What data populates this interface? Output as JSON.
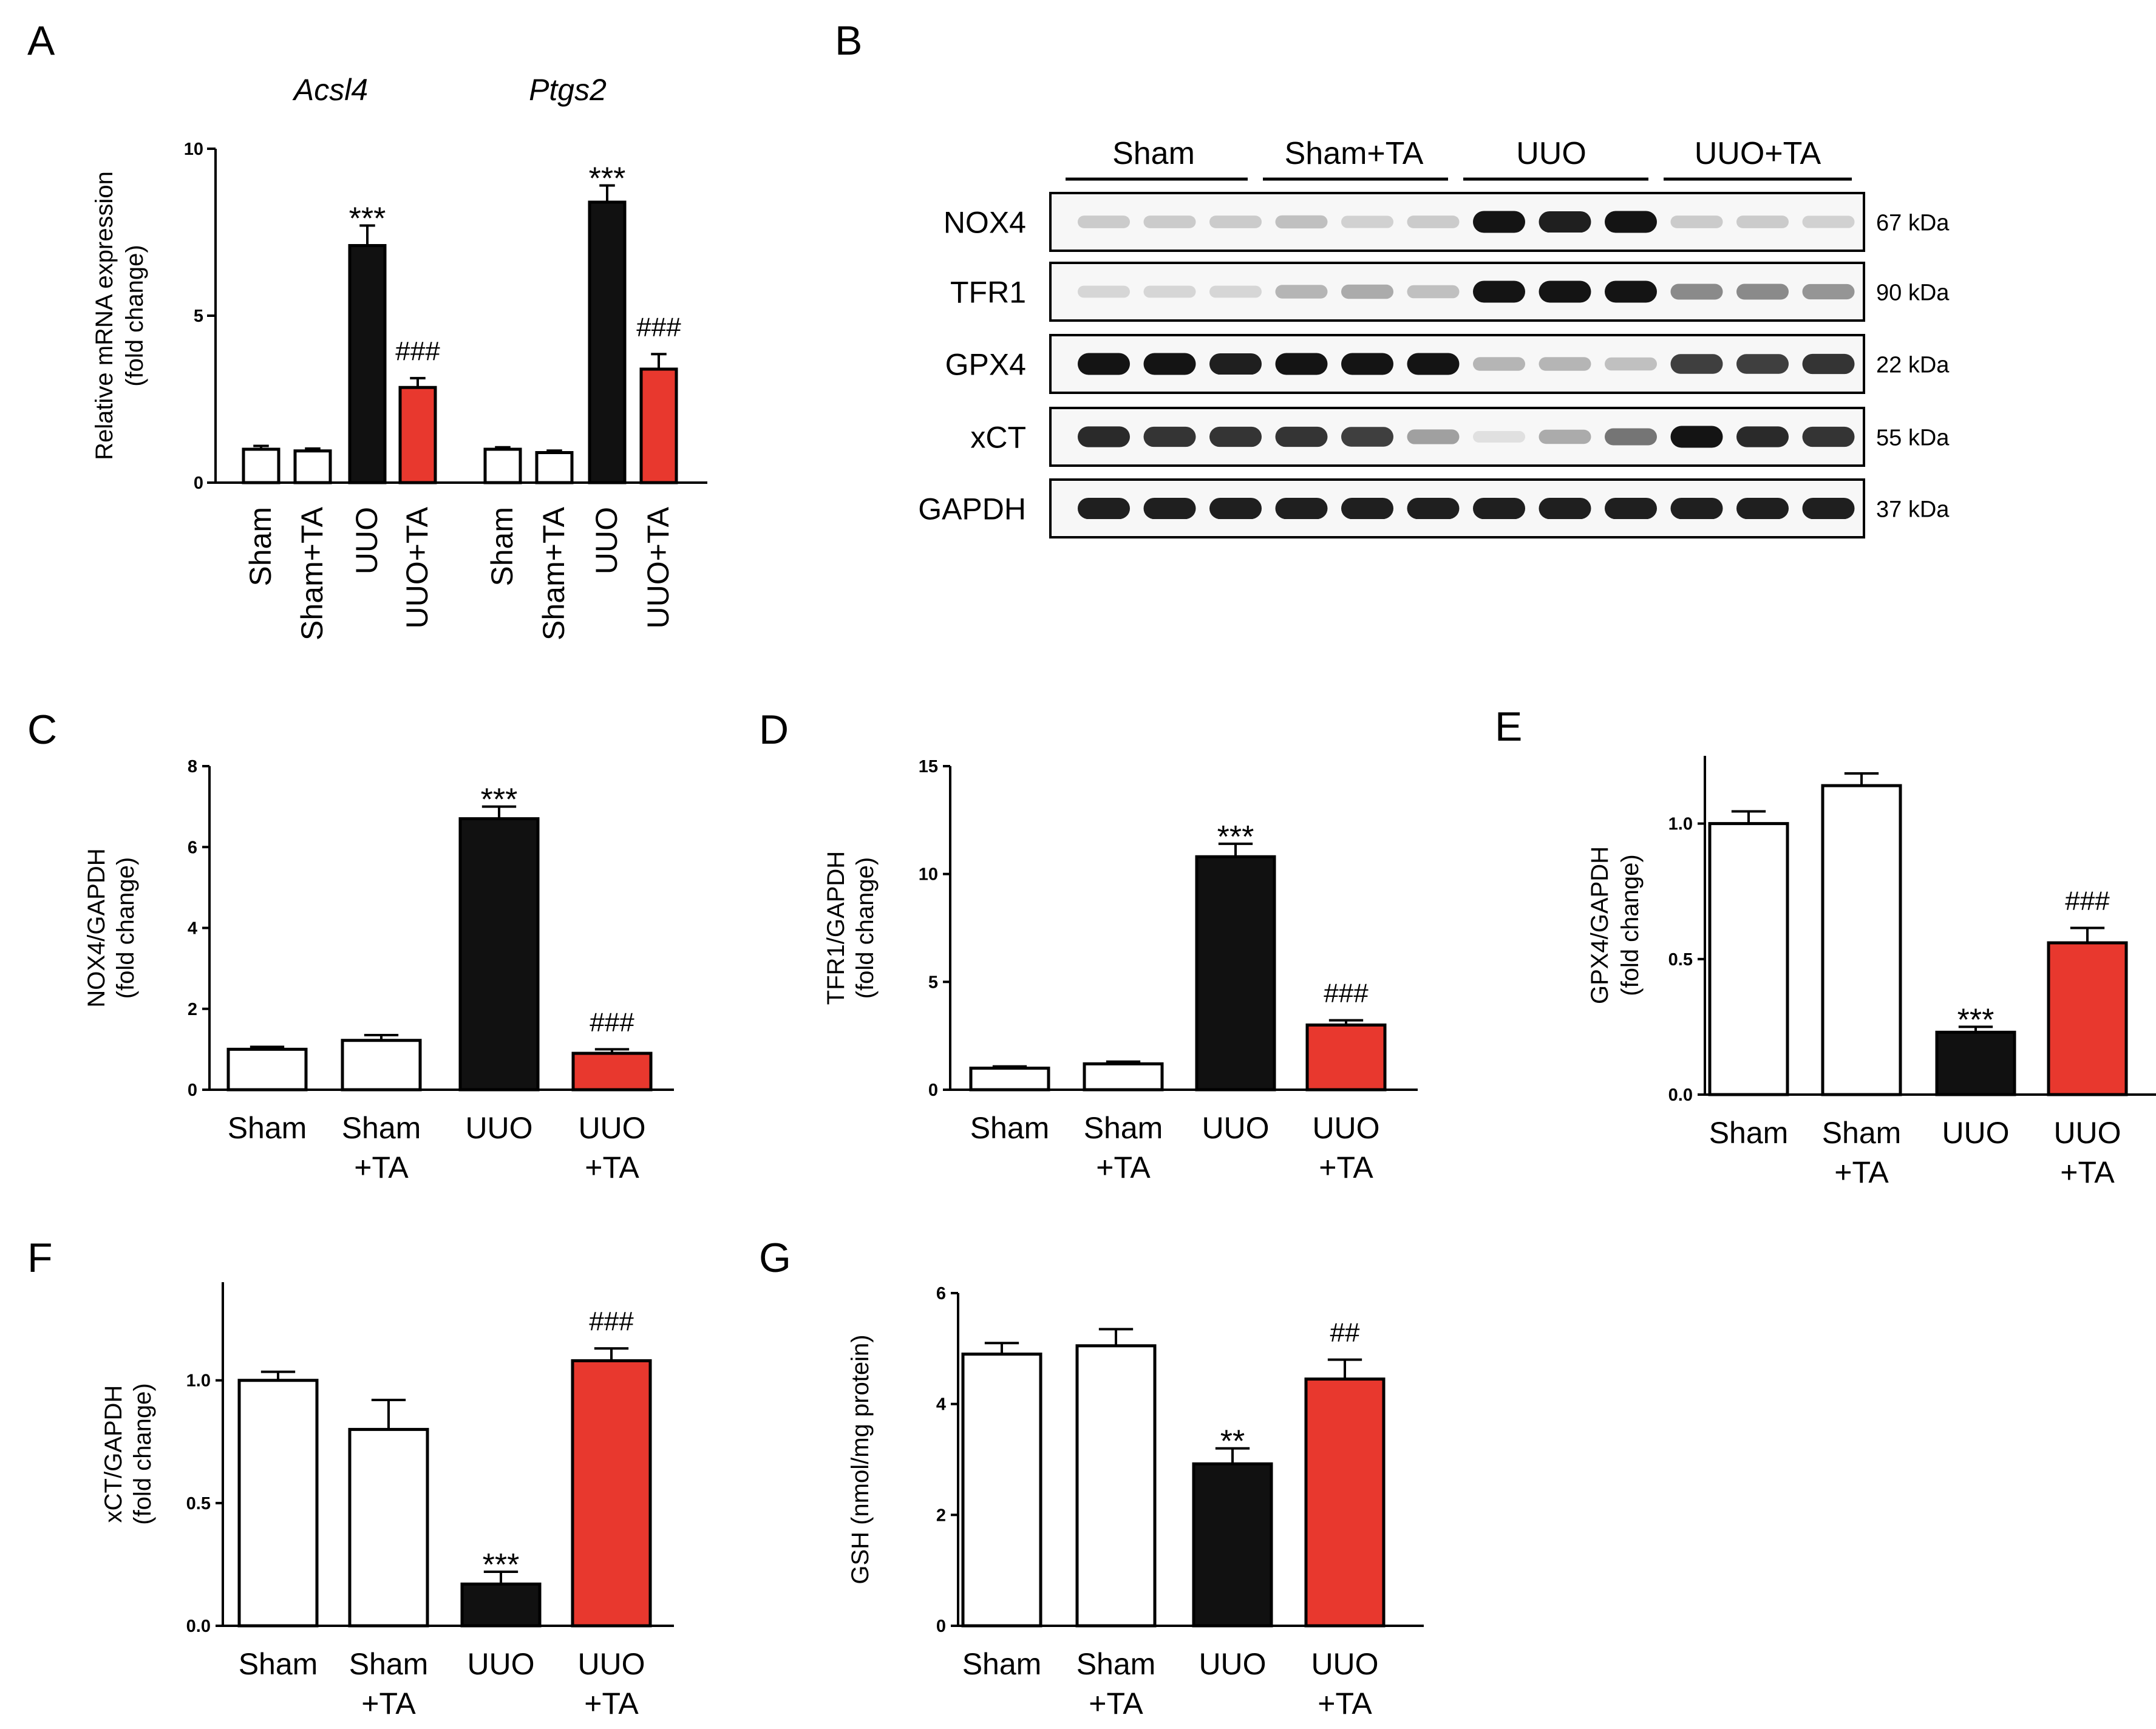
{
  "colors": {
    "Sham": "#ffffff",
    "Sham+TA": "#ffffff",
    "UUO": "#111111",
    "UUO+TA": "#e8382e",
    "outline": "#000000"
  },
  "chart_data": [
    {
      "id": "A",
      "panel_letter": "A",
      "type": "bar",
      "title": "",
      "ylabel": [
        "Relative mRNA expression",
        "(fold change)"
      ],
      "ylim": [
        0,
        10
      ],
      "yticks": [
        "0",
        "5",
        "10"
      ],
      "gene_labels": [
        "Acsl4",
        "Ptgs2"
      ],
      "categories": [
        "Sham",
        "Sham+TA",
        "UUO",
        "UUO+TA",
        "Sham",
        "Sham+TA",
        "UUO",
        "UUO+TA"
      ],
      "group_keys": [
        "Sham",
        "Sham+TA",
        "UUO",
        "UUO+TA",
        "Sham",
        "Sham+TA",
        "UUO",
        "UUO+TA"
      ],
      "values": [
        1.0,
        0.95,
        7.1,
        2.85,
        1.0,
        0.9,
        8.4,
        3.4
      ],
      "errors": [
        0.1,
        0.07,
        0.6,
        0.28,
        0.06,
        0.06,
        0.5,
        0.45
      ],
      "annotations": [
        "",
        "",
        "***",
        "###",
        "",
        "",
        "***",
        "###"
      ]
    },
    {
      "id": "C",
      "panel_letter": "C",
      "type": "bar",
      "ylabel": [
        "NOX4/GAPDH",
        "(fold change)"
      ],
      "ylim": [
        0,
        8
      ],
      "yticks": [
        "0",
        "2",
        "4",
        "6",
        "8"
      ],
      "categories": [
        [
          "Sham"
        ],
        [
          "Sham",
          "+TA"
        ],
        [
          "UUO"
        ],
        [
          "UUO",
          "+TA"
        ]
      ],
      "group_keys": [
        "Sham",
        "Sham+TA",
        "UUO",
        "UUO+TA"
      ],
      "values": [
        1.0,
        1.22,
        6.7,
        0.9
      ],
      "errors": [
        0.06,
        0.13,
        0.3,
        0.1
      ],
      "annotations": [
        "",
        "",
        "***",
        "###"
      ]
    },
    {
      "id": "D",
      "panel_letter": "D",
      "type": "bar",
      "ylabel": [
        "TFR1/GAPDH",
        "(fold change)"
      ],
      "ylim": [
        0,
        15
      ],
      "yticks": [
        "0",
        "5",
        "10",
        "15"
      ],
      "categories": [
        [
          "Sham"
        ],
        [
          "Sham",
          "+TA"
        ],
        [
          "UUO"
        ],
        [
          "UUO",
          "+TA"
        ]
      ],
      "group_keys": [
        "Sham",
        "Sham+TA",
        "UUO",
        "UUO+TA"
      ],
      "values": [
        1.0,
        1.2,
        10.8,
        3.0
      ],
      "errors": [
        0.08,
        0.1,
        0.6,
        0.22
      ],
      "annotations": [
        "",
        "",
        "***",
        "###"
      ]
    },
    {
      "id": "E",
      "panel_letter": "E",
      "type": "bar",
      "ylabel": [
        "GPX4/GAPDH",
        "(fold change)"
      ],
      "ylim": [
        0,
        1.25
      ],
      "yticks": [
        "0.0",
        "0.5",
        "1.0"
      ],
      "categories": [
        [
          "Sham"
        ],
        [
          "Sham",
          "+TA"
        ],
        [
          "UUO"
        ],
        [
          "UUO",
          "+TA"
        ]
      ],
      "group_keys": [
        "Sham",
        "Sham+TA",
        "UUO",
        "UUO+TA"
      ],
      "values": [
        1.0,
        1.14,
        0.23,
        0.56
      ],
      "errors": [
        0.045,
        0.045,
        0.02,
        0.055
      ],
      "annotations": [
        "",
        "",
        "***",
        "###"
      ]
    },
    {
      "id": "F",
      "panel_letter": "F",
      "type": "bar",
      "ylabel": [
        "xCT/GAPDH",
        "(fold change)"
      ],
      "ylim": [
        0,
        1.4
      ],
      "yticks": [
        "0.0",
        "0.5",
        "1.0"
      ],
      "categories": [
        [
          "Sham"
        ],
        [
          "Sham",
          "+TA"
        ],
        [
          "UUO"
        ],
        [
          "UUO",
          "+TA"
        ]
      ],
      "group_keys": [
        "Sham",
        "Sham+TA",
        "UUO",
        "UUO+TA"
      ],
      "values": [
        1.0,
        0.8,
        0.17,
        1.08
      ],
      "errors": [
        0.035,
        0.12,
        0.05,
        0.05
      ],
      "annotations": [
        "",
        "",
        "***",
        "###"
      ]
    },
    {
      "id": "G",
      "panel_letter": "G",
      "type": "bar",
      "ylabel": [
        "GSH (nmol/mg protein)"
      ],
      "ylim": [
        0,
        6
      ],
      "yticks": [
        "0",
        "2",
        "4",
        "6"
      ],
      "categories": [
        [
          "Sham"
        ],
        [
          "Sham",
          "+TA"
        ],
        [
          "UUO"
        ],
        [
          "UUO",
          "+TA"
        ]
      ],
      "group_keys": [
        "Sham",
        "Sham+TA",
        "UUO",
        "UUO+TA"
      ],
      "values": [
        4.9,
        5.05,
        2.92,
        4.45
      ],
      "errors": [
        0.2,
        0.3,
        0.28,
        0.35
      ],
      "annotations": [
        "",
        "",
        "**",
        "##"
      ]
    }
  ],
  "blot": {
    "panel_letter": "B",
    "groups": [
      "Sham",
      "Sham+TA",
      "UUO",
      "UUO+TA"
    ],
    "rows": [
      {
        "label": "NOX4",
        "kda": "67 kDa",
        "intensity": [
          0.15,
          0.15,
          0.15,
          0.2,
          0.12,
          0.15,
          1.0,
          0.95,
          1.0,
          0.15,
          0.15,
          0.12
        ]
      },
      {
        "label": "TFR1",
        "kda": "90 kDa",
        "intensity": [
          0.1,
          0.1,
          0.1,
          0.25,
          0.3,
          0.2,
          1.0,
          1.0,
          1.0,
          0.45,
          0.45,
          0.4
        ]
      },
      {
        "label": "GPX4",
        "kda": "22 kDa",
        "intensity": [
          1.0,
          1.0,
          0.95,
          1.0,
          1.0,
          1.0,
          0.25,
          0.25,
          0.2,
          0.8,
          0.8,
          0.85
        ]
      },
      {
        "label": "xCT",
        "kda": "55 kDa",
        "intensity": [
          0.9,
          0.85,
          0.85,
          0.85,
          0.8,
          0.35,
          0.05,
          0.3,
          0.55,
          1.0,
          0.9,
          0.85
        ]
      },
      {
        "label": "GAPDH",
        "kda": "37 kDa",
        "intensity": [
          0.95,
          0.95,
          0.95,
          0.95,
          0.95,
          0.95,
          0.95,
          0.95,
          0.95,
          0.95,
          0.95,
          0.95
        ]
      }
    ]
  }
}
